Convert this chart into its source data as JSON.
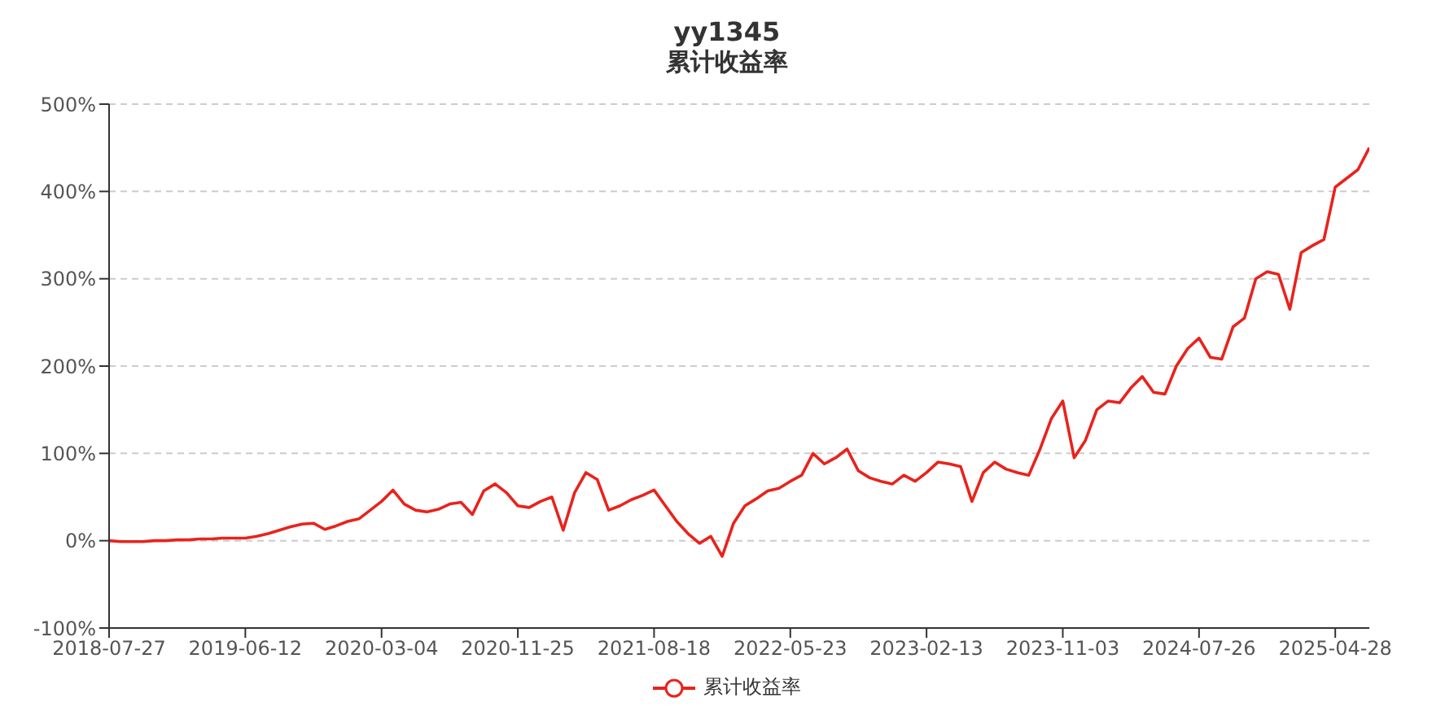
{
  "chart_data": {
    "type": "line",
    "title": "yy1345",
    "subtitle": "累计收益率",
    "categories": [
      "2018-07-27",
      null,
      null,
      null,
      null,
      null,
      null,
      null,
      null,
      null,
      null,
      null,
      "2019-06-12",
      null,
      null,
      null,
      null,
      null,
      null,
      null,
      null,
      null,
      null,
      null,
      "2020-03-04",
      null,
      null,
      null,
      null,
      null,
      null,
      null,
      null,
      null,
      null,
      null,
      "2020-11-25",
      null,
      null,
      null,
      null,
      null,
      null,
      null,
      null,
      null,
      null,
      null,
      "2021-08-18",
      null,
      null,
      null,
      null,
      null,
      null,
      null,
      null,
      null,
      null,
      null,
      "2022-05-23",
      null,
      null,
      null,
      null,
      null,
      null,
      null,
      null,
      null,
      null,
      null,
      "2023-02-13",
      null,
      null,
      null,
      null,
      null,
      null,
      null,
      null,
      null,
      null,
      null,
      "2023-11-03",
      null,
      null,
      null,
      null,
      null,
      null,
      null,
      null,
      null,
      null,
      null,
      "2024-07-26",
      null,
      null,
      null,
      null,
      null,
      null,
      null,
      null,
      null,
      null,
      null,
      "2025-04-28",
      null,
      null,
      null
    ],
    "series": [
      {
        "name": "累计收益率",
        "color": "#e8231c",
        "values": [
          0,
          -1,
          -1,
          -1,
          0,
          0,
          1,
          1,
          2,
          2,
          3,
          3,
          3,
          5,
          8,
          12,
          16,
          19,
          20,
          13,
          17,
          22,
          25,
          35,
          45,
          58,
          42,
          35,
          33,
          36,
          42,
          44,
          30,
          57,
          65,
          55,
          40,
          38,
          45,
          50,
          12,
          55,
          78,
          70,
          35,
          40,
          47,
          52,
          58,
          40,
          22,
          8,
          -3,
          5,
          -18,
          20,
          40,
          48,
          57,
          60,
          68,
          75,
          100,
          88,
          95,
          105,
          80,
          72,
          68,
          65,
          75,
          68,
          78,
          90,
          88,
          85,
          45,
          78,
          90,
          82,
          78,
          75,
          105,
          140,
          160,
          95,
          115,
          150,
          160,
          158,
          175,
          188,
          170,
          168,
          200,
          220,
          232,
          210,
          208,
          245,
          255,
          300,
          308,
          305,
          265,
          330,
          338,
          345,
          405,
          415,
          425,
          450
        ]
      }
    ],
    "ylim": [
      -100,
      500
    ],
    "yticks": [
      {
        "value": -100,
        "label": "-100%"
      },
      {
        "value": 0,
        "label": "0%"
      },
      {
        "value": 100,
        "label": "100%"
      },
      {
        "value": 200,
        "label": "200%"
      },
      {
        "value": 300,
        "label": "300%"
      },
      {
        "value": 400,
        "label": "400%"
      },
      {
        "value": 500,
        "label": "500%"
      }
    ],
    "grid": "y",
    "legend": "bottom",
    "marker": "none",
    "line_style": "solid"
  }
}
